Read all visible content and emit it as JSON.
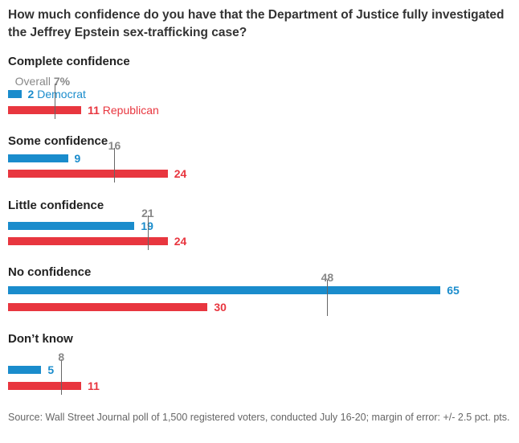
{
  "chart_data": {
    "type": "bar",
    "title": "How much confidence do you have that the Department of Justice fully investigated the Jeffrey Epstein sex-trafficking case?",
    "categories": [
      "Complete confidence",
      "Some confidence",
      "Little confidence",
      "No confidence",
      "Don’t know"
    ],
    "series": [
      {
        "name": "Overall",
        "values": [
          7,
          16,
          21,
          48,
          8
        ],
        "color": "#666666"
      },
      {
        "name": "Democrat",
        "values": [
          2,
          9,
          19,
          65,
          5
        ],
        "color": "#1a8ccc"
      },
      {
        "name": "Republican",
        "values": [
          11,
          24,
          24,
          30,
          11
        ],
        "color": "#e8363f"
      }
    ],
    "overall_prefix": "Overall",
    "percent_suffix": "%",
    "xlim": [
      0,
      65
    ],
    "source": "Source: Wall Street Journal poll of 1,500 registered voters, conducted July 16-20; margin of error: +/- 2.5 pct. pts."
  }
}
